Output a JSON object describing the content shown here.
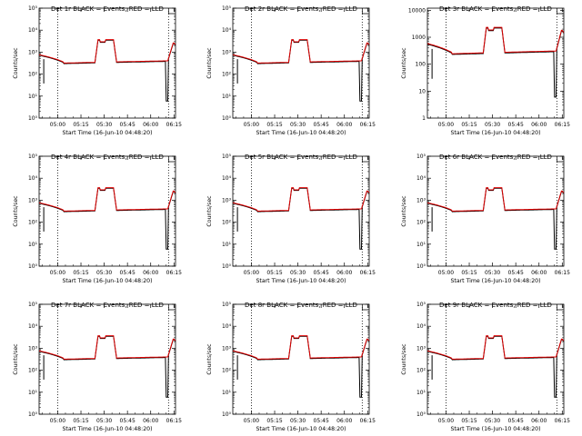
{
  "chart_data": [
    {
      "type": "line",
      "title": "Det 1r BLACK = Events, RED = LLD",
      "xlabel": "Start Time (16-Jun-10 04:48:20)",
      "ylabel": "Counts/sec",
      "yscale": "log",
      "ylim": [
        1,
        100000
      ],
      "ytick_labels": [
        "10⁰",
        "10¹",
        "10²",
        "10³",
        "10⁴",
        "10⁵"
      ],
      "xtick_labels": [
        "05:00",
        "05:15",
        "05:30",
        "05:45",
        "06:00",
        "06:15"
      ],
      "xlim_minutes": [
        -12,
        76
      ],
      "vlines_minutes": [
        0,
        71.5
      ],
      "base": 300,
      "peak": 3500,
      "end": 2600,
      "series": [
        {
          "name": "BLACK = Events",
          "color": "#000000"
        },
        {
          "name": "RED = LLD",
          "color": "#e00000"
        }
      ]
    },
    {
      "type": "line",
      "title": "Det 2r BLACK = Events, RED = LLD",
      "xlabel": "Start Time (16-Jun-10 04:48:20)",
      "ylabel": "Counts/sec",
      "yscale": "log",
      "ylim": [
        1,
        100000
      ],
      "ytick_labels": [
        "10⁰",
        "10¹",
        "10²",
        "10³",
        "10⁴",
        "10⁵"
      ],
      "xtick_labels": [
        "05:00",
        "05:15",
        "05:30",
        "05:45",
        "06:00",
        "06:15"
      ],
      "xlim_minutes": [
        -12,
        76
      ],
      "vlines_minutes": [
        0,
        71.5
      ],
      "base": 300,
      "peak": 3500,
      "end": 2600,
      "series": [
        {
          "name": "BLACK = Events",
          "color": "#000000"
        },
        {
          "name": "RED = LLD",
          "color": "#e00000"
        }
      ]
    },
    {
      "type": "line",
      "title": "Det 3r BLACK = Events, RED = LLD",
      "xlabel": "Start Time (16-Jun-10 04:48:20)",
      "ylabel": "Counts/sec",
      "yscale": "log",
      "ylim": [
        1,
        12000
      ],
      "ytick_labels": [
        "1",
        "10",
        "100",
        "1000",
        "10000"
      ],
      "xtick_labels": [
        "05:00",
        "05:15",
        "05:30",
        "05:45",
        "06:00",
        "06:15"
      ],
      "xlim_minutes": [
        -12,
        76
      ],
      "vlines_minutes": [
        0,
        71.5
      ],
      "base": 230,
      "peak": 2200,
      "end": 1800,
      "series": [
        {
          "name": "BLACK = Events",
          "color": "#000000"
        },
        {
          "name": "RED = LLD",
          "color": "#e00000"
        }
      ]
    },
    {
      "type": "line",
      "title": "Det 4r BLACK = Events, RED = LLD",
      "xlabel": "Start Time (16-Jun-10 04:48:20)",
      "ylabel": "Counts/sec",
      "yscale": "log",
      "ylim": [
        1,
        100000
      ],
      "ytick_labels": [
        "10⁰",
        "10¹",
        "10²",
        "10³",
        "10⁴",
        "10⁵"
      ],
      "xtick_labels": [
        "05:00",
        "05:15",
        "05:30",
        "05:45",
        "06:00",
        "06:15"
      ],
      "xlim_minutes": [
        -12,
        76
      ],
      "vlines_minutes": [
        0,
        71.5
      ],
      "base": 300,
      "peak": 3500,
      "end": 2600,
      "series": [
        {
          "name": "BLACK = Events",
          "color": "#000000"
        },
        {
          "name": "RED = LLD",
          "color": "#e00000"
        }
      ]
    },
    {
      "type": "line",
      "title": "Det 5r BLACK = Events, RED = LLD",
      "xlabel": "Start Time (16-Jun-10 04:48:20)",
      "ylabel": "Counts/sec",
      "yscale": "log",
      "ylim": [
        1,
        100000
      ],
      "ytick_labels": [
        "10⁰",
        "10¹",
        "10²",
        "10³",
        "10⁴",
        "10⁵"
      ],
      "xtick_labels": [
        "05:00",
        "05:15",
        "05:30",
        "05:45",
        "06:00",
        "06:15"
      ],
      "xlim_minutes": [
        -12,
        76
      ],
      "vlines_minutes": [
        0,
        71.5
      ],
      "base": 300,
      "peak": 3500,
      "end": 2600,
      "series": [
        {
          "name": "BLACK = Events",
          "color": "#000000"
        },
        {
          "name": "RED = LLD",
          "color": "#e00000"
        }
      ]
    },
    {
      "type": "line",
      "title": "Det 6r BLACK = Events, RED = LLD",
      "xlabel": "Start Time (16-Jun-10 04:48:20)",
      "ylabel": "Counts/sec",
      "yscale": "log",
      "ylim": [
        1,
        100000
      ],
      "ytick_labels": [
        "10⁰",
        "10¹",
        "10²",
        "10³",
        "10⁴",
        "10⁵"
      ],
      "xtick_labels": [
        "05:00",
        "05:15",
        "05:30",
        "05:45",
        "06:00",
        "06:15"
      ],
      "xlim_minutes": [
        -12,
        76
      ],
      "vlines_minutes": [
        0,
        71.5
      ],
      "base": 300,
      "peak": 3500,
      "end": 2600,
      "series": [
        {
          "name": "BLACK = Events",
          "color": "#000000"
        },
        {
          "name": "RED = LLD",
          "color": "#e00000"
        }
      ]
    },
    {
      "type": "line",
      "title": "Det 7r BLACK = Events, RED = LLD",
      "xlabel": "Start Time (16-Jun-10 04:48:20)",
      "ylabel": "Counts/sec",
      "yscale": "log",
      "ylim": [
        1,
        100000
      ],
      "ytick_labels": [
        "10⁰",
        "10¹",
        "10²",
        "10³",
        "10⁴",
        "10⁵"
      ],
      "xtick_labels": [
        "05:00",
        "05:15",
        "05:30",
        "05:45",
        "06:00",
        "06:15"
      ],
      "xlim_minutes": [
        -12,
        76
      ],
      "vlines_minutes": [
        0,
        71.5
      ],
      "base": 300,
      "peak": 3500,
      "end": 2600,
      "series": [
        {
          "name": "BLACK = Events",
          "color": "#000000"
        },
        {
          "name": "RED = LLD",
          "color": "#e00000"
        }
      ]
    },
    {
      "type": "line",
      "title": "Det 8r BLACK = Events, RED = LLD",
      "xlabel": "Start Time (16-Jun-10 04:48:20)",
      "ylabel": "Counts/sec",
      "yscale": "log",
      "ylim": [
        1,
        100000
      ],
      "ytick_labels": [
        "10⁰",
        "10¹",
        "10²",
        "10³",
        "10⁴",
        "10⁵"
      ],
      "xtick_labels": [
        "05:00",
        "05:15",
        "05:30",
        "05:45",
        "06:00",
        "06:15"
      ],
      "xlim_minutes": [
        -12,
        76
      ],
      "vlines_minutes": [
        0,
        71.5
      ],
      "base": 300,
      "peak": 3500,
      "end": 2600,
      "series": [
        {
          "name": "BLACK = Events",
          "color": "#000000"
        },
        {
          "name": "RED = LLD",
          "color": "#e00000"
        }
      ]
    },
    {
      "type": "line",
      "title": "Det 9r BLACK = Events, RED = LLD",
      "xlabel": "Start Time (16-Jun-10 04:48:20)",
      "ylabel": "Counts/sec",
      "yscale": "log",
      "ylim": [
        1,
        100000
      ],
      "ytick_labels": [
        "10⁰",
        "10¹",
        "10²",
        "10³",
        "10⁴",
        "10⁵"
      ],
      "xtick_labels": [
        "05:00",
        "05:15",
        "05:30",
        "05:45",
        "06:00",
        "06:15"
      ],
      "xlim_minutes": [
        -12,
        76
      ],
      "vlines_minutes": [
        0,
        71.5
      ],
      "base": 300,
      "peak": 3500,
      "end": 2600,
      "series": [
        {
          "name": "BLACK = Events",
          "color": "#000000"
        },
        {
          "name": "RED = LLD",
          "color": "#e00000"
        }
      ]
    }
  ]
}
